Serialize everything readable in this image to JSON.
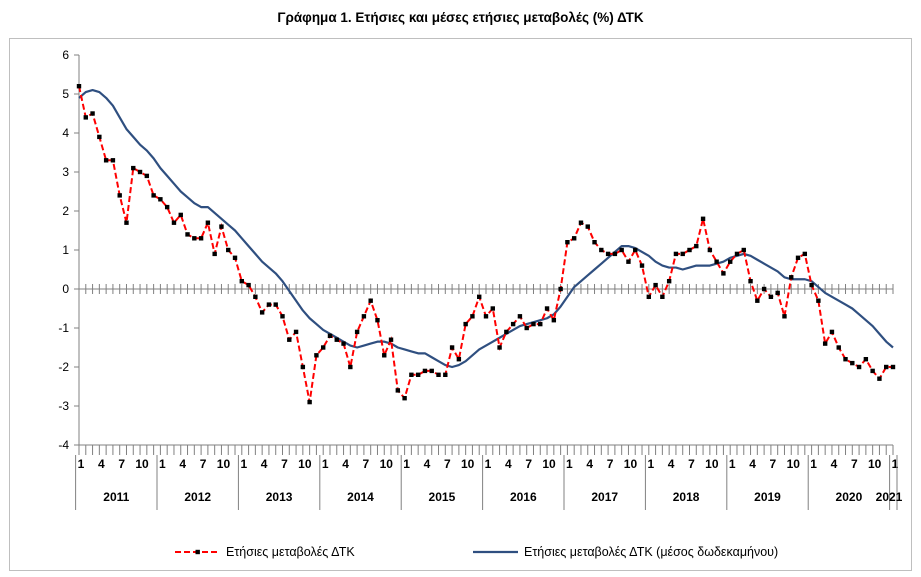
{
  "chart_data": {
    "type": "line",
    "title": "Γράφημα 1. Ετήσιες και μέσες ετήσιες μεταβολές (%) ΔΤΚ",
    "xlabel": "",
    "ylabel": "",
    "ylim": [
      -4,
      6
    ],
    "yticks": [
      6,
      5,
      4,
      3,
      2,
      1,
      0,
      -1,
      -2,
      -3,
      -4
    ],
    "grid": false,
    "legend_position": "bottom",
    "month_tick_labels": [
      "1",
      "4",
      "7",
      "10"
    ],
    "years": [
      "2011",
      "2012",
      "2013",
      "2014",
      "2015",
      "2016",
      "2017",
      "2018",
      "2019",
      "2020",
      "2021"
    ],
    "x_start": "2011-01",
    "x_end": "2021-01",
    "series": [
      {
        "name": "Ετήσιες μεταβολές ΔΤΚ",
        "style": "dashed-markers",
        "color": "#ff0000",
        "marker_color": "#000000",
        "values": [
          5.2,
          4.4,
          4.5,
          3.9,
          3.3,
          3.3,
          2.4,
          1.7,
          3.1,
          3.0,
          2.9,
          2.4,
          2.3,
          2.1,
          1.7,
          1.9,
          1.4,
          1.3,
          1.3,
          1.7,
          0.9,
          1.6,
          1.0,
          0.8,
          0.2,
          0.1,
          -0.2,
          -0.6,
          -0.4,
          -0.4,
          -0.7,
          -1.3,
          -1.1,
          -2.0,
          -2.9,
          -1.7,
          -1.5,
          -1.2,
          -1.3,
          -1.4,
          -2.0,
          -1.1,
          -0.7,
          -0.3,
          -0.8,
          -1.7,
          -1.3,
          -2.6,
          -2.8,
          -2.2,
          -2.2,
          -2.1,
          -2.1,
          -2.2,
          -2.2,
          -1.5,
          -1.8,
          -0.9,
          -0.7,
          -0.2,
          -0.7,
          -0.5,
          -1.5,
          -1.1,
          -0.9,
          -0.7,
          -1.0,
          -0.9,
          -0.9,
          -0.5,
          -0.8,
          0.0,
          1.2,
          1.3,
          1.7,
          1.6,
          1.2,
          1.0,
          0.9,
          0.9,
          1.0,
          0.7,
          1.0,
          0.6,
          -0.2,
          0.1,
          -0.2,
          0.2,
          0.9,
          0.9,
          1.0,
          1.1,
          1.8,
          1.0,
          0.7,
          0.4,
          0.7,
          0.9,
          1.0,
          0.2,
          -0.3,
          0.0,
          -0.2,
          -0.1,
          -0.7,
          0.3,
          0.8,
          0.9,
          0.1,
          -0.3,
          -1.4,
          -1.1,
          -1.5,
          -1.8,
          -1.9,
          -2.0,
          -1.8,
          -2.1,
          -2.3,
          -2.0,
          -2.0
        ]
      },
      {
        "name": "Ετήσιες μεταβολές ΔΤΚ (μέσος δωδεκαμήνου)",
        "style": "solid",
        "color": "#2f4f80",
        "values": [
          4.9,
          5.05,
          5.1,
          5.05,
          4.9,
          4.7,
          4.4,
          4.1,
          3.9,
          3.7,
          3.55,
          3.35,
          3.1,
          2.9,
          2.7,
          2.5,
          2.35,
          2.2,
          2.1,
          2.1,
          1.95,
          1.8,
          1.65,
          1.5,
          1.3,
          1.1,
          0.9,
          0.7,
          0.55,
          0.4,
          0.2,
          -0.05,
          -0.3,
          -0.55,
          -0.75,
          -0.9,
          -1.05,
          -1.15,
          -1.25,
          -1.35,
          -1.45,
          -1.5,
          -1.45,
          -1.4,
          -1.35,
          -1.35,
          -1.4,
          -1.5,
          -1.55,
          -1.6,
          -1.65,
          -1.65,
          -1.75,
          -1.85,
          -1.95,
          -2.0,
          -1.95,
          -1.85,
          -1.7,
          -1.55,
          -1.45,
          -1.35,
          -1.25,
          -1.15,
          -1.05,
          -0.95,
          -0.9,
          -0.85,
          -0.8,
          -0.75,
          -0.65,
          -0.45,
          -0.2,
          0.05,
          0.2,
          0.35,
          0.5,
          0.65,
          0.8,
          0.95,
          1.1,
          1.1,
          1.05,
          0.95,
          0.85,
          0.7,
          0.6,
          0.55,
          0.55,
          0.5,
          0.55,
          0.6,
          0.6,
          0.6,
          0.65,
          0.7,
          0.8,
          0.85,
          0.9,
          0.85,
          0.75,
          0.65,
          0.55,
          0.45,
          0.3,
          0.25,
          0.25,
          0.25,
          0.2,
          0.05,
          -0.1,
          -0.2,
          -0.3,
          -0.4,
          -0.5,
          -0.65,
          -0.8,
          -0.95,
          -1.15,
          -1.35,
          -1.5
        ]
      }
    ]
  }
}
